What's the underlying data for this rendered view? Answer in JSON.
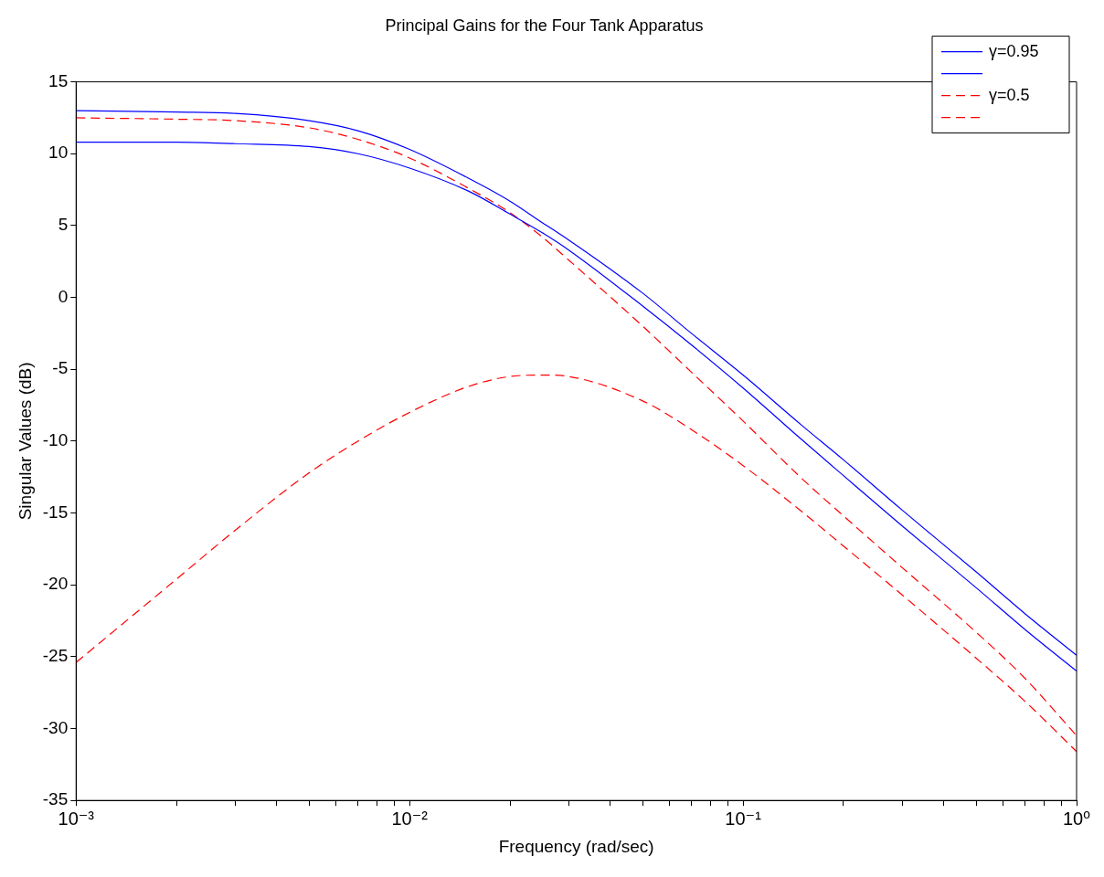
{
  "chart_data": {
    "type": "line",
    "title": "Principal Gains for the Four Tank Apparatus",
    "xlabel": "Frequency (rad/sec)",
    "ylabel": "Singular Values (dB)",
    "log": "x",
    "grid": false,
    "legend": "top right",
    "marker": "none",
    "xlim": [
      0.001,
      1
    ],
    "ylim": [
      -35,
      15
    ],
    "xticks": [
      {
        "value": 0.001,
        "label": "10⁻³"
      },
      {
        "value": 0.002,
        "label": null
      },
      {
        "value": 0.003,
        "label": null
      },
      {
        "value": 0.004,
        "label": null
      },
      {
        "value": 0.005,
        "label": null
      },
      {
        "value": 0.006,
        "label": null
      },
      {
        "value": 0.007,
        "label": null
      },
      {
        "value": 0.008,
        "label": null
      },
      {
        "value": 0.009,
        "label": null
      },
      {
        "value": 0.01,
        "label": "10⁻²"
      },
      {
        "value": 0.02,
        "label": null
      },
      {
        "value": 0.03,
        "label": null
      },
      {
        "value": 0.04,
        "label": null
      },
      {
        "value": 0.05,
        "label": null
      },
      {
        "value": 0.06,
        "label": null
      },
      {
        "value": 0.07,
        "label": null
      },
      {
        "value": 0.08,
        "label": null
      },
      {
        "value": 0.09,
        "label": null
      },
      {
        "value": 0.1,
        "label": "10⁻¹"
      },
      {
        "value": 0.2,
        "label": null
      },
      {
        "value": 0.3,
        "label": null
      },
      {
        "value": 0.4,
        "label": null
      },
      {
        "value": 0.5,
        "label": null
      },
      {
        "value": 0.6,
        "label": null
      },
      {
        "value": 0.7,
        "label": null
      },
      {
        "value": 0.8,
        "label": null
      },
      {
        "value": 0.9,
        "label": null
      },
      {
        "value": 1,
        "label": "10⁰"
      }
    ],
    "yticks": [
      -35,
      -30,
      -25,
      -20,
      -15,
      -10,
      -5,
      0,
      5,
      10,
      15
    ],
    "x": [
      0.001,
      0.002,
      0.003,
      0.005,
      0.007,
      0.01,
      0.015,
      0.02,
      0.025,
      0.03,
      0.05,
      0.07,
      0.1,
      0.15,
      0.2,
      0.3,
      0.5,
      0.7,
      1
    ],
    "series": [
      {
        "name": "γ=0.95",
        "color": "#0000ff",
        "line_style": "solid",
        "values": [
          13.0,
          12.9,
          12.8,
          12.3,
          11.6,
          10.3,
          8.3,
          6.7,
          5.2,
          4.0,
          0.3,
          -2.5,
          -5.4,
          -8.9,
          -11.3,
          -14.8,
          -19.1,
          -22.0,
          -24.9
        ]
      },
      {
        "color": "#0000ff",
        "line_style": "solid",
        "values": [
          10.8,
          10.8,
          10.7,
          10.5,
          10.0,
          9.0,
          7.4,
          5.8,
          4.5,
          3.3,
          -0.6,
          -3.3,
          -6.3,
          -9.9,
          -12.4,
          -15.9,
          -20.2,
          -23.1,
          -26.0
        ]
      },
      {
        "name": "γ=0.5",
        "color": "#ff0000",
        "line_style": "dashed",
        "values": [
          12.5,
          12.4,
          12.3,
          11.8,
          11.0,
          9.7,
          7.6,
          5.9,
          4.2,
          2.6,
          -2.0,
          -5.2,
          -8.6,
          -12.6,
          -15.2,
          -18.8,
          -23.3,
          -26.5,
          -30.5
        ]
      },
      {
        "color": "#ff0000",
        "line_style": "dashed",
        "values": [
          -25.4,
          -19.6,
          -16.2,
          -12.2,
          -10.0,
          -8.0,
          -6.2,
          -5.5,
          -5.4,
          -5.5,
          -7.2,
          -9.2,
          -11.7,
          -14.9,
          -17.3,
          -20.7,
          -25.1,
          -28.1,
          -31.6
        ]
      }
    ]
  }
}
